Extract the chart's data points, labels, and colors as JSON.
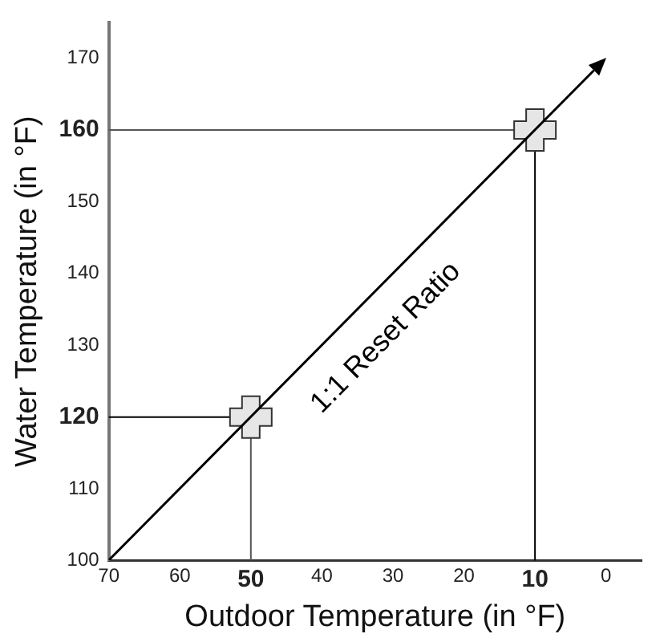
{
  "chart_data": {
    "type": "scatter",
    "xlabel": "Outdoor Temperature (in °F)",
    "ylabel": "Water Temperature (in °F)",
    "xlim": [
      70,
      -5
    ],
    "xticks": [
      70,
      60,
      50,
      40,
      30,
      20,
      10,
      0
    ],
    "ylim": [
      100,
      175
    ],
    "yticks": [
      100,
      110,
      120,
      130,
      140,
      150,
      160,
      170
    ],
    "series": [
      {
        "type": "scatter",
        "color": "#e6e6e6",
        "x": [
          50,
          10
        ],
        "values": [
          120,
          160
        ],
        "marker": "cross"
      }
    ],
    "ref_lines": [
      {
        "axis": "x",
        "value": 50,
        "color": "#555555"
      },
      {
        "axis": "x",
        "value": 10,
        "color": "#000000"
      },
      {
        "axis": "y",
        "value": 120,
        "color": "#000000"
      },
      {
        "axis": "y",
        "value": 160,
        "color": "#555555"
      }
    ],
    "annotations": [
      "1:1 Reset Ratio"
    ],
    "grid": false,
    "legend": false
  }
}
